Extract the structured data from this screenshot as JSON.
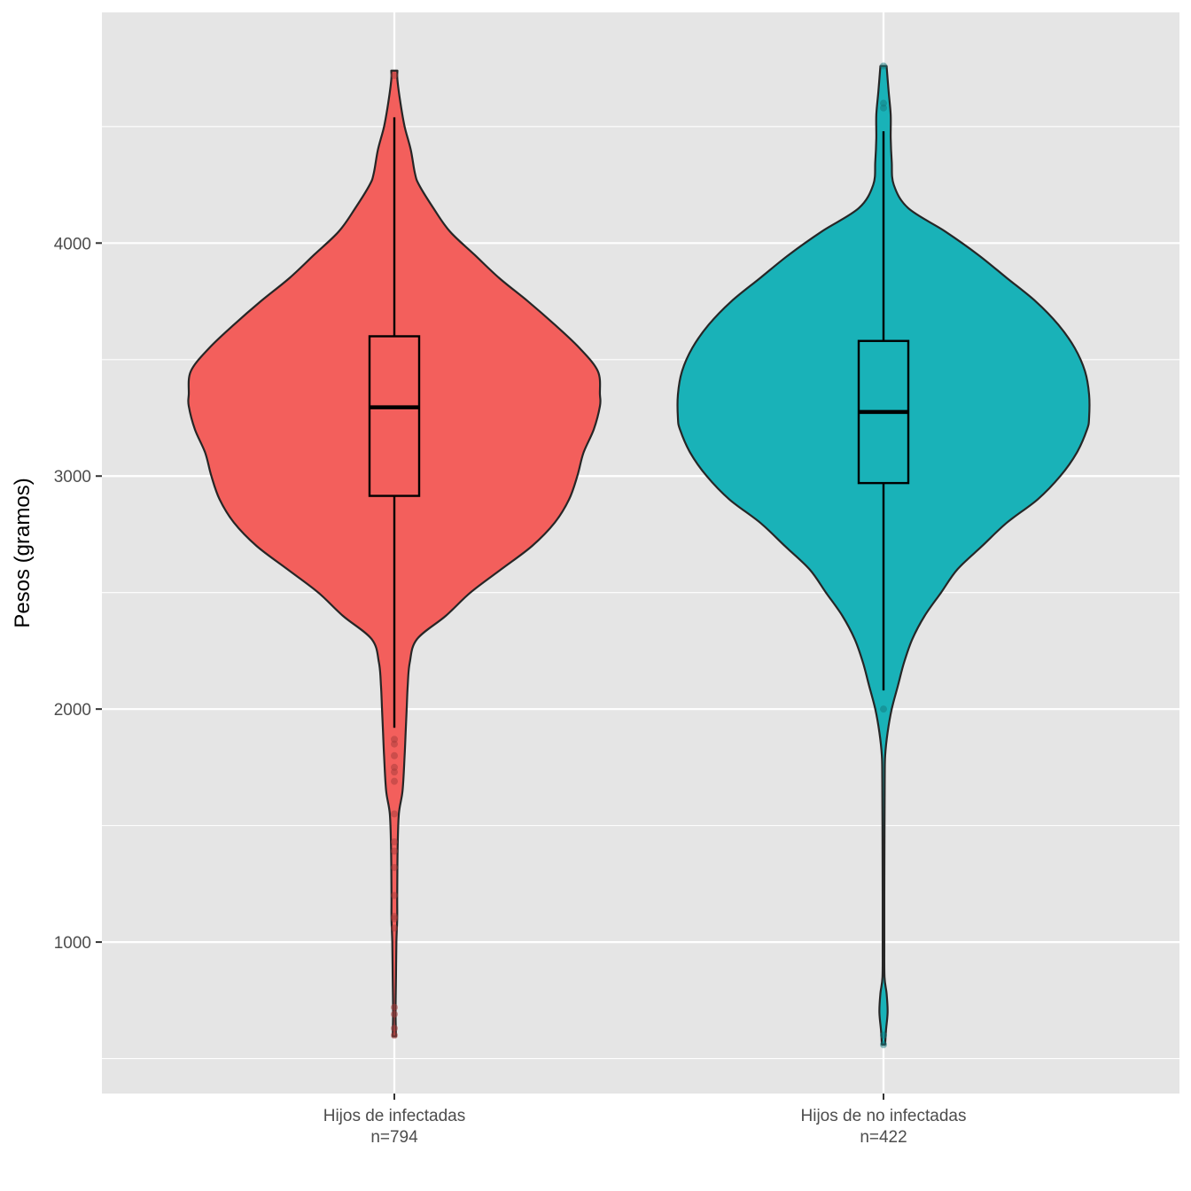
{
  "chart_data": {
    "type": "violin",
    "title": "",
    "xlabel": "",
    "ylabel": "Pesos (gramos)",
    "ylim": [
      350,
      4990
    ],
    "y_ticks": [
      1000,
      2000,
      3000,
      4000
    ],
    "grid": true,
    "legend": "none",
    "colors": {
      "panel_bg": "#e5e5e5",
      "grid": "#ffffff",
      "outline": "#262626",
      "tick_text": "#4d4d4d"
    },
    "groups": [
      {
        "label_line1": "Hijos de infectadas",
        "label_line2": "n=794",
        "n": 794,
        "fill": "#f35f5c",
        "point_color": "#a53b39",
        "box": {
          "min": 1920,
          "q1": 2915,
          "median": 3295,
          "q3": 3600,
          "max": 4540
        },
        "outliers": [
          600,
          630,
          690,
          720,
          1060,
          1100,
          1110,
          1200,
          1320,
          1390,
          1430,
          1550,
          1690,
          1730,
          1750,
          1800,
          1850,
          1870,
          4720
        ],
        "density": [
          [
            595,
            0.008
          ],
          [
            700,
            0.006
          ],
          [
            850,
            0.008
          ],
          [
            1000,
            0.01
          ],
          [
            1100,
            0.014
          ],
          [
            1200,
            0.014
          ],
          [
            1400,
            0.016
          ],
          [
            1550,
            0.022
          ],
          [
            1650,
            0.04
          ],
          [
            1800,
            0.05
          ],
          [
            1900,
            0.055
          ],
          [
            2000,
            0.06
          ],
          [
            2100,
            0.065
          ],
          [
            2200,
            0.075
          ],
          [
            2300,
            0.11
          ],
          [
            2400,
            0.25
          ],
          [
            2500,
            0.37
          ],
          [
            2600,
            0.52
          ],
          [
            2700,
            0.67
          ],
          [
            2800,
            0.78
          ],
          [
            2900,
            0.85
          ],
          [
            3000,
            0.89
          ],
          [
            3100,
            0.92
          ],
          [
            3200,
            0.97
          ],
          [
            3300,
            1.0
          ],
          [
            3350,
            1.0
          ],
          [
            3450,
            0.99
          ],
          [
            3550,
            0.9
          ],
          [
            3650,
            0.78
          ],
          [
            3750,
            0.65
          ],
          [
            3850,
            0.51
          ],
          [
            3950,
            0.39
          ],
          [
            4050,
            0.27
          ],
          [
            4150,
            0.19
          ],
          [
            4250,
            0.12
          ],
          [
            4300,
            0.1
          ],
          [
            4400,
            0.08
          ],
          [
            4500,
            0.05
          ],
          [
            4600,
            0.03
          ],
          [
            4700,
            0.015
          ],
          [
            4740,
            0.015
          ]
        ]
      },
      {
        "label_line1": "Hijos de no infectadas",
        "label_line2": "n=422",
        "n": 422,
        "fill": "#19b2b8",
        "point_color": "#137a7e",
        "box": {
          "min": 2080,
          "q1": 2970,
          "median": 3275,
          "q3": 3580,
          "max": 4480
        },
        "outliers": [
          560,
          600,
          2000,
          4580,
          4600,
          4760
        ],
        "density": [
          [
            560,
            0.008
          ],
          [
            620,
            0.012
          ],
          [
            700,
            0.02
          ],
          [
            780,
            0.015
          ],
          [
            850,
            0.005
          ],
          [
            1000,
            0.004
          ],
          [
            1200,
            0.004
          ],
          [
            1500,
            0.005
          ],
          [
            1700,
            0.006
          ],
          [
            1800,
            0.008
          ],
          [
            1900,
            0.02
          ],
          [
            2000,
            0.04
          ],
          [
            2100,
            0.07
          ],
          [
            2200,
            0.1
          ],
          [
            2300,
            0.14
          ],
          [
            2400,
            0.2
          ],
          [
            2500,
            0.28
          ],
          [
            2600,
            0.36
          ],
          [
            2700,
            0.48
          ],
          [
            2800,
            0.6
          ],
          [
            2900,
            0.75
          ],
          [
            3000,
            0.86
          ],
          [
            3100,
            0.94
          ],
          [
            3200,
            0.99
          ],
          [
            3250,
            1.0
          ],
          [
            3350,
            1.0
          ],
          [
            3450,
            0.98
          ],
          [
            3550,
            0.93
          ],
          [
            3650,
            0.85
          ],
          [
            3750,
            0.74
          ],
          [
            3850,
            0.6
          ],
          [
            3950,
            0.46
          ],
          [
            4050,
            0.3
          ],
          [
            4150,
            0.12
          ],
          [
            4250,
            0.05
          ],
          [
            4350,
            0.04
          ],
          [
            4450,
            0.035
          ],
          [
            4550,
            0.035
          ],
          [
            4650,
            0.025
          ],
          [
            4760,
            0.015
          ]
        ]
      }
    ]
  }
}
